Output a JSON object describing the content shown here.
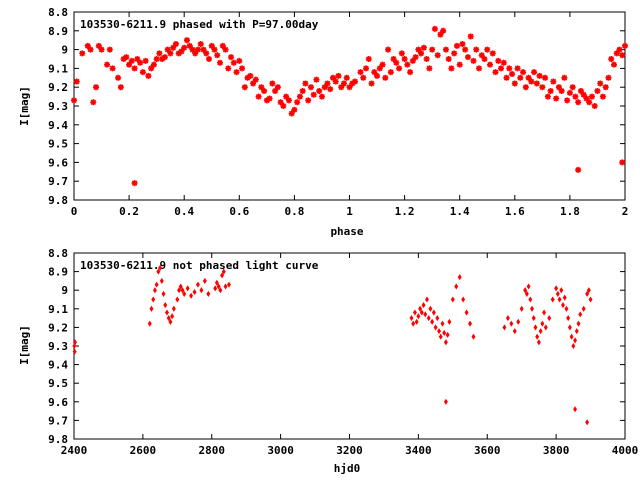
{
  "chart_data": [
    {
      "type": "scatter",
      "title": "103530-6211.9 phased with P=97.00day",
      "xlabel": "phase",
      "ylabel": "I[mag]",
      "xlim": [
        0,
        2
      ],
      "ylim": [
        8.8,
        9.8
      ],
      "y_inverted": true,
      "grid": false,
      "xticks": [
        0,
        0.2,
        0.4,
        0.6,
        0.8,
        1,
        1.2,
        1.4,
        1.6,
        1.8,
        2
      ],
      "xtick_labels": [
        "0",
        "0.2",
        "0.4",
        "0.6",
        "0.8",
        "1",
        "1.2",
        "1.4",
        "1.6",
        "1.8",
        "2"
      ],
      "yticks": [
        8.8,
        8.9,
        9.0,
        9.1,
        9.2,
        9.3,
        9.4,
        9.5,
        9.6,
        9.7,
        9.8
      ],
      "ytick_labels": [
        "8.8",
        "8.9",
        "9",
        "9.1",
        "9.2",
        "9.3",
        "9.4",
        "9.5",
        "9.6",
        "9.7",
        "9.8"
      ],
      "marker": "star",
      "color": "#ff0000",
      "series": [
        {
          "x": [
            0.0,
            0.01,
            0.03,
            0.05,
            0.06,
            0.07,
            0.08,
            0.09,
            0.1,
            0.12,
            0.13,
            0.14,
            0.16,
            0.17,
            0.18,
            0.19,
            0.2,
            0.21,
            0.22,
            0.23,
            0.24,
            0.25,
            0.26,
            0.27,
            0.28,
            0.29,
            0.3,
            0.31,
            0.32,
            0.33,
            0.34,
            0.35,
            0.36,
            0.37,
            0.38,
            0.39,
            0.4,
            0.41,
            0.42,
            0.43,
            0.44,
            0.45,
            0.46,
            0.47,
            0.48,
            0.49,
            0.5,
            0.51,
            0.52,
            0.53,
            0.54,
            0.55,
            0.56,
            0.57,
            0.58,
            0.59,
            0.6,
            0.61,
            0.62,
            0.63,
            0.64,
            0.65,
            0.66,
            0.67,
            0.68,
            0.69,
            0.7,
            0.71,
            0.72,
            0.73,
            0.74,
            0.75,
            0.76,
            0.77,
            0.78,
            0.79,
            0.8,
            0.81,
            0.82,
            0.83,
            0.84,
            0.85,
            0.86,
            0.87,
            0.88,
            0.89,
            0.9,
            0.91,
            0.92,
            0.93,
            0.94,
            0.95,
            0.96,
            0.97,
            0.98,
            0.99,
            0.22,
            1.0,
            1.01,
            1.02,
            1.04,
            1.05,
            1.06,
            1.07,
            1.08,
            1.09,
            1.1,
            1.11,
            1.12,
            1.13,
            1.14,
            1.15,
            1.16,
            1.17,
            1.18,
            1.19,
            1.2,
            1.21,
            1.22,
            1.23,
            1.24,
            1.25,
            1.26,
            1.27,
            1.28,
            1.29,
            1.3,
            1.31,
            1.32,
            1.33,
            1.34,
            1.35,
            1.36,
            1.37,
            1.38,
            1.39,
            1.4,
            1.41,
            1.42,
            1.43,
            1.44,
            1.45,
            1.46,
            1.47,
            1.48,
            1.49,
            1.5,
            1.51,
            1.52,
            1.53,
            1.54,
            1.55,
            1.56,
            1.57,
            1.58,
            1.59,
            1.6,
            1.61,
            1.62,
            1.63,
            1.64,
            1.65,
            1.66,
            1.67,
            1.68,
            1.69,
            1.7,
            1.71,
            1.72,
            1.73,
            1.74,
            1.75,
            1.76,
            1.77,
            1.78,
            1.79,
            1.8,
            1.81,
            1.82,
            1.83,
            1.84,
            1.85,
            1.86,
            1.87,
            1.88,
            1.89,
            1.9,
            1.91,
            1.92,
            1.93,
            1.94,
            1.95,
            1.96,
            1.97,
            1.98,
            1.99,
            2.0,
            1.83,
            1.99
          ],
          "y": [
            9.27,
            9.17,
            9.02,
            8.98,
            9.0,
            9.28,
            9.2,
            8.98,
            9.0,
            9.08,
            9.0,
            9.1,
            9.15,
            9.2,
            9.05,
            9.04,
            9.08,
            9.06,
            9.1,
            9.05,
            9.07,
            9.12,
            9.06,
            9.14,
            9.1,
            9.08,
            9.05,
            9.02,
            9.05,
            9.04,
            9.0,
            9.02,
            8.99,
            8.97,
            9.02,
            9.01,
            8.99,
            8.95,
            8.98,
            9.0,
            9.02,
            9.0,
            8.97,
            9.0,
            9.02,
            9.05,
            8.98,
            9.0,
            9.03,
            9.07,
            8.98,
            9.0,
            9.1,
            9.04,
            9.07,
            9.12,
            9.06,
            9.1,
            9.2,
            9.15,
            9.14,
            9.18,
            9.16,
            9.25,
            9.2,
            9.22,
            9.27,
            9.26,
            9.18,
            9.22,
            9.2,
            9.28,
            9.3,
            9.25,
            9.27,
            9.34,
            9.32,
            9.28,
            9.25,
            9.22,
            9.18,
            9.27,
            9.2,
            9.24,
            9.16,
            9.22,
            9.25,
            9.2,
            9.18,
            9.21,
            9.15,
            9.17,
            9.14,
            9.2,
            9.18,
            9.15,
            9.71,
            9.2,
            9.18,
            9.17,
            9.12,
            9.15,
            9.1,
            9.05,
            9.18,
            9.12,
            9.14,
            9.1,
            9.08,
            9.15,
            9.0,
            9.12,
            9.05,
            9.07,
            9.1,
            9.02,
            9.05,
            9.08,
            9.12,
            9.06,
            9.04,
            9.0,
            9.02,
            8.99,
            9.05,
            9.1,
            9.0,
            8.89,
            9.03,
            8.92,
            8.9,
            9.0,
            9.05,
            9.1,
            9.02,
            8.98,
            9.08,
            8.97,
            9.0,
            9.04,
            8.93,
            9.06,
            9.0,
            9.1,
            9.03,
            9.05,
            9.0,
            9.08,
            9.02,
            9.12,
            9.06,
            9.1,
            9.07,
            9.15,
            9.1,
            9.13,
            9.18,
            9.1,
            9.15,
            9.12,
            9.2,
            9.15,
            9.17,
            9.12,
            9.18,
            9.14,
            9.2,
            9.15,
            9.25,
            9.22,
            9.17,
            9.26,
            9.2,
            9.22,
            9.15,
            9.27,
            9.23,
            9.2,
            9.25,
            9.28,
            9.22,
            9.24,
            9.26,
            9.28,
            9.25,
            9.3,
            9.22,
            9.18,
            9.25,
            9.2,
            9.15,
            9.05,
            9.08,
            9.02,
            9.0,
            9.03,
            8.98,
            9.64,
            9.6
          ]
        }
      ]
    },
    {
      "type": "scatter",
      "title": "103530-6211.9 not phased light curve",
      "xlabel": "hjd0",
      "ylabel": "I[mag]",
      "xlim": [
        2400,
        4000
      ],
      "ylim": [
        8.8,
        9.8
      ],
      "y_inverted": true,
      "grid": false,
      "xticks": [
        2400,
        2600,
        2800,
        3000,
        3200,
        3400,
        3600,
        3800,
        4000
      ],
      "xtick_labels": [
        "2400",
        "2600",
        "2800",
        "3000",
        "3200",
        "3400",
        "3600",
        "3800",
        "4000"
      ],
      "yticks": [
        8.8,
        8.9,
        9.0,
        9.1,
        9.2,
        9.3,
        9.4,
        9.5,
        9.6,
        9.7,
        9.8
      ],
      "ytick_labels": [
        "8.8",
        "8.9",
        "9",
        "9.1",
        "9.2",
        "9.3",
        "9.4",
        "9.5",
        "9.6",
        "9.7",
        "9.8"
      ],
      "marker": "diamond",
      "color": "#ff0000",
      "series": [
        {
          "x": [
            2401,
            2402,
            2403,
            2620,
            2625,
            2630,
            2635,
            2640,
            2645,
            2650,
            2655,
            2660,
            2665,
            2670,
            2675,
            2680,
            2685,
            2690,
            2700,
            2705,
            2710,
            2715,
            2720,
            2730,
            2740,
            2750,
            2760,
            2770,
            2780,
            2790,
            2810,
            2815,
            2820,
            2825,
            2830,
            2835,
            2840,
            2850,
            3380,
            3385,
            3390,
            3395,
            3400,
            3405,
            3410,
            3415,
            3420,
            3425,
            3430,
            3435,
            3440,
            3445,
            3450,
            3455,
            3460,
            3465,
            3470,
            3475,
            3480,
            3485,
            3490,
            3500,
            3510,
            3520,
            3530,
            3540,
            3550,
            3560,
            3650,
            3660,
            3670,
            3680,
            3690,
            3700,
            3710,
            3715,
            3720,
            3725,
            3730,
            3735,
            3740,
            3745,
            3750,
            3755,
            3760,
            3765,
            3770,
            3780,
            3790,
            3800,
            3805,
            3810,
            3815,
            3820,
            3825,
            3830,
            3835,
            3840,
            3845,
            3850,
            3855,
            3860,
            3865,
            3870,
            3880,
            3890,
            3895,
            3900,
            3480,
            3855,
            3890
          ],
          "y": [
            9.3,
            9.33,
            9.28,
            9.18,
            9.1,
            9.05,
            9.0,
            8.97,
            8.9,
            8.88,
            8.95,
            9.02,
            9.08,
            9.12,
            9.15,
            9.17,
            9.14,
            9.1,
            9.05,
            9.0,
            8.98,
            9.0,
            9.02,
            8.99,
            9.03,
            9.01,
            8.97,
            9.0,
            8.95,
            9.02,
            8.99,
            8.96,
            8.98,
            9.0,
            8.92,
            8.9,
            8.98,
            8.97,
            9.15,
            9.18,
            9.12,
            9.17,
            9.14,
            9.1,
            9.12,
            9.08,
            9.13,
            9.05,
            9.15,
            9.1,
            9.17,
            9.12,
            9.2,
            9.15,
            9.22,
            9.25,
            9.18,
            9.23,
            9.28,
            9.24,
            9.17,
            9.05,
            8.98,
            8.93,
            9.05,
            9.12,
            9.18,
            9.25,
            9.2,
            9.15,
            9.18,
            9.22,
            9.17,
            9.1,
            9.0,
            9.02,
            8.98,
            9.05,
            9.1,
            9.15,
            9.2,
            9.25,
            9.28,
            9.22,
            9.18,
            9.12,
            9.2,
            9.15,
            9.05,
            8.99,
            9.02,
            9.05,
            9.0,
            9.08,
            9.04,
            9.1,
            9.15,
            9.2,
            9.25,
            9.3,
            9.27,
            9.22,
            9.18,
            9.13,
            9.1,
            9.02,
            9.0,
            9.05,
            9.6,
            9.64,
            9.71
          ]
        }
      ]
    }
  ]
}
